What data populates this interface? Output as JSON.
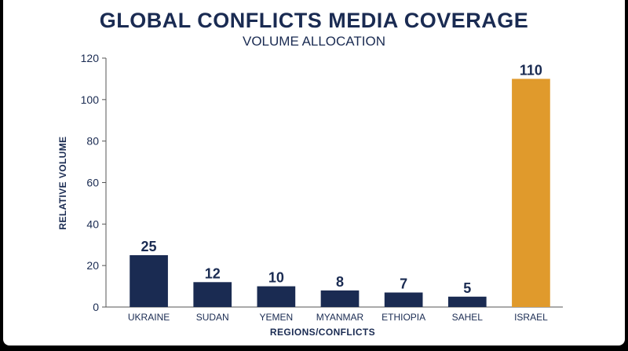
{
  "chart_data": {
    "type": "bar",
    "title": "GLOBAL CONFLICTS MEDIA COVERAGE",
    "subtitle": "VOLUME ALLOCATION",
    "xlabel": "REGIONS/CONFLICTS",
    "ylabel": "RELATIVE VOLUME",
    "ylim": [
      0,
      120
    ],
    "yticks": [
      "0",
      "20",
      "40",
      "60",
      "80",
      "100",
      "120"
    ],
    "categories": [
      "UKRAINE",
      "SUDAN",
      "YEMEN",
      "MYANMAR",
      "ETHIOPIA",
      "SAHEL",
      "ISRAEL"
    ],
    "values": [
      25,
      12,
      10,
      8,
      7,
      5,
      110
    ],
    "data_labels": [
      "25",
      "12",
      "10",
      "8",
      "7",
      "5",
      "110"
    ],
    "bar_colors": [
      "#1a2b52",
      "#1a2b52",
      "#1a2b52",
      "#1a2b52",
      "#1a2b52",
      "#1a2b52",
      "#e09a2c"
    ],
    "grid": false,
    "legend": "none"
  }
}
